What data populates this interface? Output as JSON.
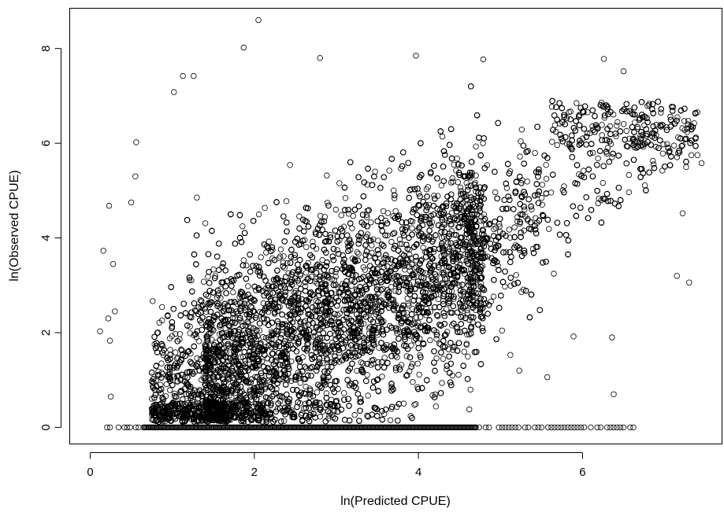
{
  "chart_data": {
    "type": "scatter",
    "title": "",
    "xlabel": "ln(Predicted CPUE)",
    "ylabel": "ln(Observed CPUE)",
    "xlim": [
      -0.25,
      7.7
    ],
    "ylim": [
      -0.35,
      8.85
    ],
    "xticks": [
      0,
      2,
      4,
      6
    ],
    "yticks": [
      0,
      2,
      4,
      6,
      8
    ],
    "xtick_labels": [
      "0",
      "2",
      "4",
      "6"
    ],
    "ytick_labels": [
      "0",
      "2",
      "4",
      "6",
      "8"
    ],
    "grid": false,
    "legend": "none",
    "marker": "open-circle",
    "marker_color": "#000000",
    "point_count_estimate": 60000,
    "notable_points": [
      {
        "x": 2.05,
        "y": 8.6
      },
      {
        "x": 1.87,
        "y": 8.02
      },
      {
        "x": 2.8,
        "y": 7.8
      },
      {
        "x": 3.97,
        "y": 7.85
      },
      {
        "x": 4.79,
        "y": 7.77
      },
      {
        "x": 6.26,
        "y": 7.78
      },
      {
        "x": 6.5,
        "y": 7.52
      },
      {
        "x": 1.13,
        "y": 7.42
      },
      {
        "x": 1.26,
        "y": 7.42
      },
      {
        "x": 1.02,
        "y": 7.08
      },
      {
        "x": 0.16,
        "y": 3.73
      },
      {
        "x": 0.23,
        "y": 4.68
      },
      {
        "x": 0.28,
        "y": 3.45
      },
      {
        "x": 0.12,
        "y": 2.03
      },
      {
        "x": 0.22,
        "y": 2.3
      },
      {
        "x": 0.3,
        "y": 2.45
      },
      {
        "x": 0.24,
        "y": 1.83
      },
      {
        "x": 0.25,
        "y": 0.65
      },
      {
        "x": 0.56,
        "y": 6.02
      },
      {
        "x": 0.5,
        "y": 4.75
      },
      {
        "x": 0.55,
        "y": 5.3
      },
      {
        "x": 6.36,
        "y": 1.9
      },
      {
        "x": 6.38,
        "y": 0.7
      },
      {
        "x": 5.89,
        "y": 1.92
      },
      {
        "x": 7.22,
        "y": 4.52
      },
      {
        "x": 7.3,
        "y": 3.06
      },
      {
        "x": 7.15,
        "y": 3.2
      },
      {
        "x": 7.45,
        "y": 5.58
      },
      {
        "x": 7.4,
        "y": 5.75
      },
      {
        "x": 5.57,
        "y": 1.06
      },
      {
        "x": 5.12,
        "y": 1.53
      },
      {
        "x": 5.23,
        "y": 1.2
      },
      {
        "x": 4.62,
        "y": 0.38
      }
    ],
    "zero_row": {
      "y": 0,
      "x_min": 0.1,
      "x_max": 6.65,
      "dense_from": 0.65,
      "dense_to": 4.7
    },
    "cloud": {
      "description_regions": [
        {
          "x": [
            0.75,
            1.5
          ],
          "y": [
            0.3,
            4.5
          ]
        },
        {
          "x": [
            1.5,
            4.0
          ],
          "y": [
            0.1,
            6.0
          ]
        },
        {
          "x": [
            4.0,
            5.5
          ],
          "y": [
            1.5,
            6.2
          ]
        },
        {
          "x": [
            5.5,
            7.3
          ],
          "y": [
            4.0,
            6.9
          ]
        }
      ]
    }
  }
}
